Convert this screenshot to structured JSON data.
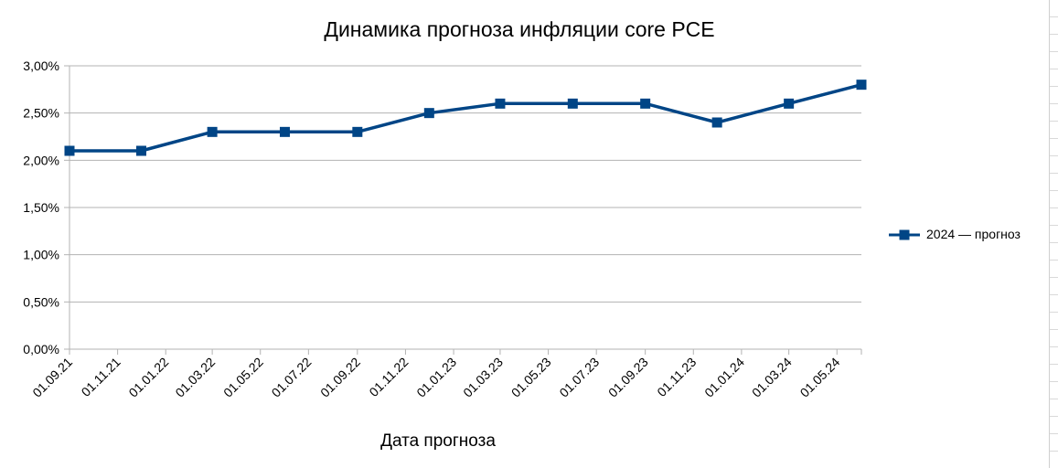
{
  "chart_data": {
    "type": "line",
    "title": "Динамика прогноза инфляции core PCE",
    "xlabel": "Дата прогноза",
    "ylabel": "",
    "ylim": [
      0,
      0.03
    ],
    "y_tick_values": [
      0,
      0.005,
      0.01,
      0.015,
      0.02,
      0.025,
      0.03
    ],
    "y_tick_labels": [
      "0,00%",
      "0,50%",
      "1,00%",
      "1,50%",
      "2,00%",
      "2,50%",
      "3,00%"
    ],
    "x_tick_labels": [
      "01.09.21",
      "01.11.21",
      "01.01.22",
      "01.03.22",
      "01.05.22",
      "01.07.22",
      "01.09.22",
      "01.11.22",
      "01.01.23",
      "01.03.23",
      "01.05.23",
      "01.07.23",
      "01.09.23",
      "01.11.23",
      "01.01.24",
      "01.03.24",
      "01.05.24"
    ],
    "x_range": [
      "2021-09-01",
      "2024-06-01"
    ],
    "grid": true,
    "legend_position": "right",
    "series": [
      {
        "name": "2024 — прогноз",
        "color": "#004586",
        "marker": "square",
        "points": [
          {
            "x": "2021-09-01",
            "y": 0.021
          },
          {
            "x": "2021-12-01",
            "y": 0.021
          },
          {
            "x": "2022-03-01",
            "y": 0.023
          },
          {
            "x": "2022-06-01",
            "y": 0.023
          },
          {
            "x": "2022-09-01",
            "y": 0.023
          },
          {
            "x": "2022-12-01",
            "y": 0.025
          },
          {
            "x": "2023-03-01",
            "y": 0.026
          },
          {
            "x": "2023-06-01",
            "y": 0.026
          },
          {
            "x": "2023-09-01",
            "y": 0.026
          },
          {
            "x": "2023-12-01",
            "y": 0.024
          },
          {
            "x": "2024-03-01",
            "y": 0.026
          },
          {
            "x": "2024-06-01",
            "y": 0.028
          }
        ]
      }
    ]
  }
}
